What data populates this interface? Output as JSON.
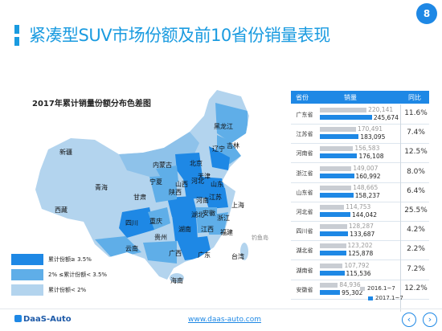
{
  "page": {
    "title": "紧凑型SUV市场份额及前10省份销量表现",
    "page_number": "8",
    "footer_logo": "DaaS-Auto",
    "website": "www.daas-auto.com"
  },
  "map": {
    "title": "2017年累计销量份额分布色差图",
    "source_note": "钓鱼岛",
    "legend": [
      {
        "label": "累计份额≥ 3.5%",
        "color": "#1e88e5"
      },
      {
        "label": "2% ≤累计份额< 3.5%",
        "color": "#5faee8"
      },
      {
        "label": "累计份额< 2%",
        "color": "#b3d4ee"
      }
    ],
    "province_labels": [
      "黑龙江",
      "吉林",
      "辽宁",
      "内蒙古",
      "新疆",
      "青海",
      "西藏",
      "甘肃",
      "宁夏",
      "陕西",
      "山西",
      "北京",
      "天津",
      "河北",
      "山东",
      "河南",
      "江苏",
      "安徽",
      "上海",
      "浙江",
      "湖北",
      "四川",
      "重庆",
      "贵州",
      "湖南",
      "江西",
      "福建",
      "云南",
      "广西",
      "广东",
      "台湾",
      "海南"
    ]
  },
  "chart_data": {
    "type": "bar",
    "columns": {
      "province": "省份",
      "sales": "销量",
      "growth": "同比"
    },
    "categories": [
      "广东省",
      "江苏省",
      "河南省",
      "浙江省",
      "山东省",
      "河北省",
      "四川省",
      "湖北省",
      "湖南省",
      "安徽省"
    ],
    "series": [
      {
        "name": "2016.1~7",
        "values": [
          220141,
          170491,
          156583,
          149007,
          148665,
          114753,
          128287,
          123202,
          107792,
          84936
        ],
        "labels": [
          "220,141",
          "170,491",
          "156,583",
          "149,007",
          "148,665",
          "114,753",
          "128,287",
          "123,202",
          "107,792",
          "84,936"
        ]
      },
      {
        "name": "2017.1~7",
        "values": [
          245674,
          183095,
          176108,
          160992,
          158237,
          144042,
          133687,
          125878,
          115536,
          95302
        ],
        "labels": [
          "245,674",
          "183,095",
          "176,108",
          "160,992",
          "158,237",
          "144,042",
          "133,687",
          "125,878",
          "115,536",
          "95,302"
        ]
      }
    ],
    "growth": [
      "11.6%",
      "7.4%",
      "12.5%",
      "8.0%",
      "6.4%",
      "25.5%",
      "4.2%",
      "2.2%",
      "7.2%",
      "12.2%"
    ],
    "colors": {
      "2016.1~7": "#c9cdd3",
      "2017.1~7": "#1e88e5"
    }
  }
}
